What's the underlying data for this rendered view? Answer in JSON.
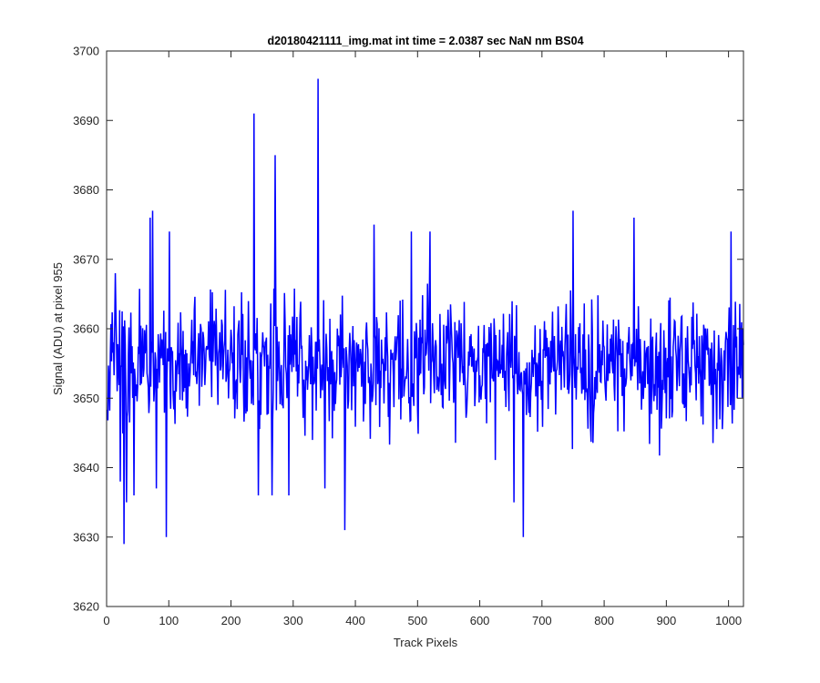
{
  "chart_data": {
    "type": "line",
    "title": "d20180421111_img.mat int time = 2.0387 sec  NaN nm BS04",
    "xlabel": "Track Pixels",
    "ylabel": "Signal (ADU) at pixel 955",
    "xlim": [
      0,
      1024
    ],
    "ylim": [
      3620,
      3700
    ],
    "x_ticks": [
      0,
      100,
      200,
      300,
      400,
      500,
      600,
      700,
      800,
      900,
      1000
    ],
    "y_ticks": [
      3620,
      3630,
      3640,
      3650,
      3660,
      3670,
      3680,
      3690,
      3700
    ],
    "grid": false,
    "series": [
      {
        "color": "#0000ff",
        "x_start": 1,
        "x_step": 1,
        "n_points": 1024,
        "mean": 3655,
        "std": 6,
        "peaks": [
          {
            "x": 14,
            "y": 3668
          },
          {
            "x": 22,
            "y": 3638
          },
          {
            "x": 28,
            "y": 3629
          },
          {
            "x": 32,
            "y": 3635
          },
          {
            "x": 44,
            "y": 3636
          },
          {
            "x": 70,
            "y": 3676
          },
          {
            "x": 74,
            "y": 3677
          },
          {
            "x": 80,
            "y": 3637
          },
          {
            "x": 96,
            "y": 3630
          },
          {
            "x": 101,
            "y": 3674
          },
          {
            "x": 237,
            "y": 3691
          },
          {
            "x": 244,
            "y": 3636
          },
          {
            "x": 266,
            "y": 3636
          },
          {
            "x": 271,
            "y": 3685
          },
          {
            "x": 293,
            "y": 3636
          },
          {
            "x": 340,
            "y": 3696
          },
          {
            "x": 351,
            "y": 3637
          },
          {
            "x": 383,
            "y": 3631
          },
          {
            "x": 430,
            "y": 3675
          },
          {
            "x": 490,
            "y": 3674
          },
          {
            "x": 520,
            "y": 3674
          },
          {
            "x": 655,
            "y": 3635
          },
          {
            "x": 670,
            "y": 3630
          },
          {
            "x": 750,
            "y": 3677
          },
          {
            "x": 848,
            "y": 3676
          },
          {
            "x": 1004,
            "y": 3674
          }
        ]
      }
    ]
  }
}
